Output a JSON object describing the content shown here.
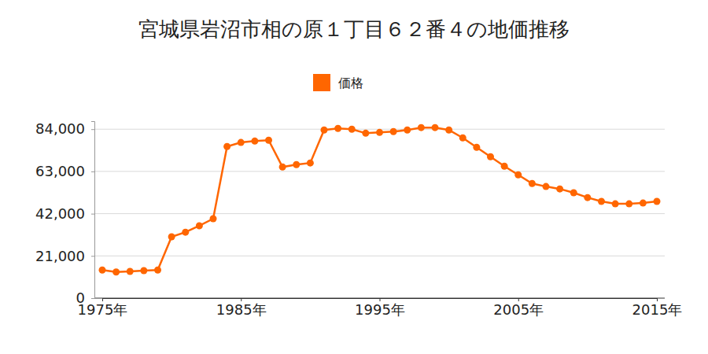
{
  "chart_data": {
    "type": "line",
    "title": "宮城県岩沼市相の原１丁目６２番４の地価推移",
    "x": [
      1975,
      1976,
      1977,
      1978,
      1979,
      1980,
      1981,
      1982,
      1983,
      1984,
      1985,
      1986,
      1987,
      1988,
      1989,
      1990,
      1991,
      1992,
      1993,
      1994,
      1995,
      1996,
      1997,
      1998,
      1999,
      2000,
      2001,
      2002,
      2003,
      2004,
      2005,
      2006,
      2007,
      2008,
      2009,
      2010,
      2011,
      2012,
      2013,
      2014,
      2015
    ],
    "series": [
      {
        "name": "価格",
        "color": "#ff6600",
        "marker": "circle",
        "line_style": "solid",
        "values": [
          14000,
          13000,
          13300,
          13700,
          14000,
          30500,
          32800,
          36000,
          39500,
          75400,
          77400,
          78100,
          78500,
          65200,
          66400,
          67200,
          83600,
          84400,
          84000,
          82000,
          82400,
          82800,
          83600,
          84800,
          84800,
          83600,
          79700,
          75000,
          70300,
          65600,
          61300,
          57000,
          55500,
          54300,
          52400,
          50000,
          48100,
          46900,
          46900,
          47300,
          48100
        ]
      }
    ],
    "xlim": [
      1975,
      2015
    ],
    "xticks": [
      {
        "value": 1975,
        "label": "1975年"
      },
      {
        "value": 1985,
        "label": "1985年"
      },
      {
        "value": 1995,
        "label": "1995年"
      },
      {
        "value": 2005,
        "label": "2005年"
      },
      {
        "value": 2015,
        "label": "2015年"
      }
    ],
    "ylim": [
      0,
      88000
    ],
    "yticks": [
      0,
      {
        "value": 21000,
        "label": "21,000"
      },
      {
        "value": 42000,
        "label": "42,000"
      },
      {
        "value": 63000,
        "label": "63,000"
      },
      {
        "value": 84000,
        "label": "84,000"
      }
    ],
    "grid": true,
    "legend": "top"
  }
}
